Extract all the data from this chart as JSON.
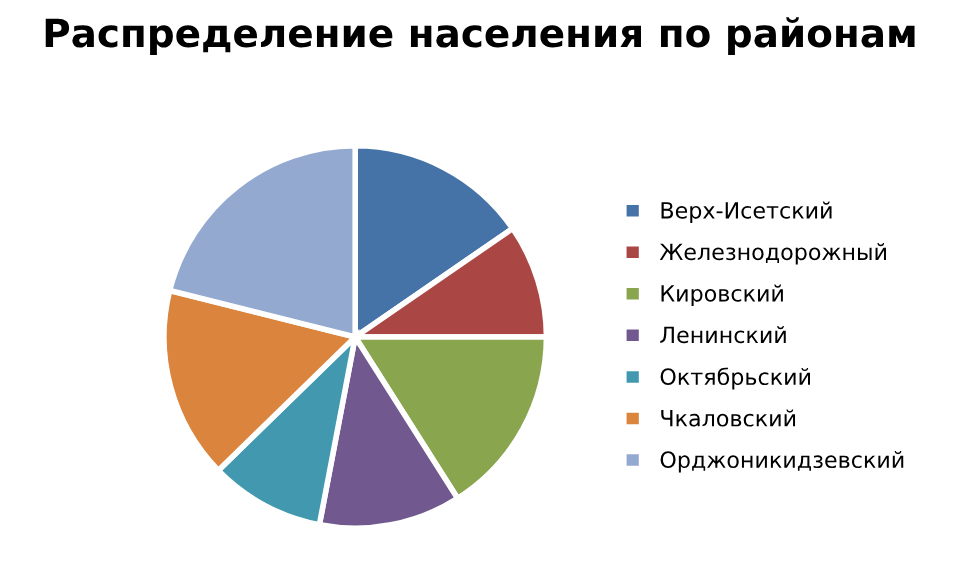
{
  "chart_data": {
    "type": "pie",
    "title": "Распределение населения по районам",
    "categories": [
      "Верх-Исетский",
      "Железнодорожный",
      "Кировский",
      "Ленинский",
      "Октябрьский",
      "Чкаловский",
      "Орджоникидзевский"
    ],
    "values": [
      15.4,
      9.6,
      16,
      12,
      9.7,
      16.2,
      21.1
    ],
    "colors": [
      "#4572a7",
      "#aa4643",
      "#89a54e",
      "#71588f",
      "#4198af",
      "#db843d",
      "#93a9cf"
    ],
    "legend": "right"
  }
}
